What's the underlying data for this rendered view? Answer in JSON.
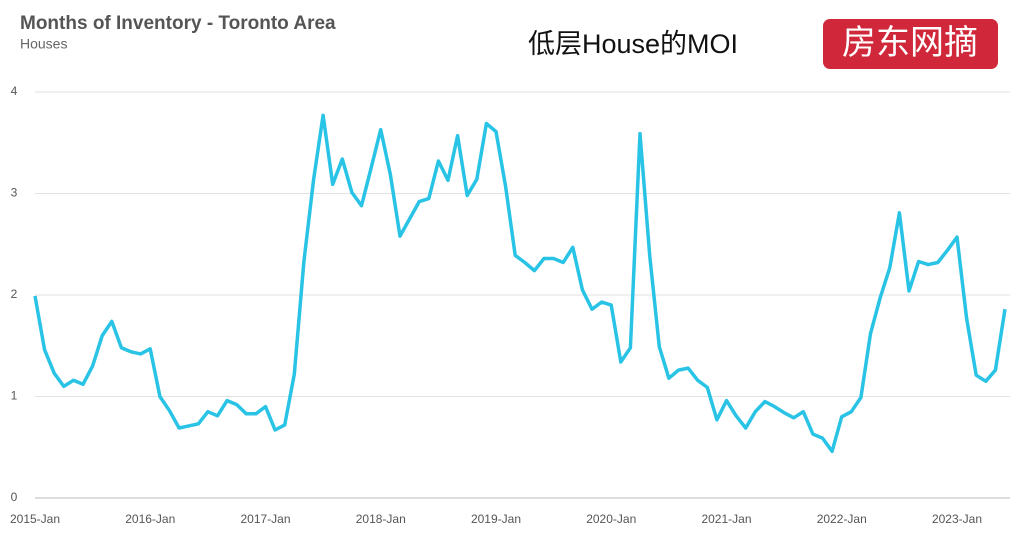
{
  "chart_data": {
    "type": "line",
    "title": "Months of Inventory - Toronto Area",
    "subtitle": "Houses",
    "annotation": "低层House的MOI",
    "badge": "房东网摘",
    "color": "#29c3e6",
    "grid": true,
    "ylim": [
      0,
      4
    ],
    "yticks": [
      0,
      1,
      2,
      3,
      4
    ],
    "categories": [
      "2015-Jan",
      null,
      null,
      null,
      null,
      null,
      null,
      null,
      null,
      null,
      null,
      null,
      "2016-Jan",
      null,
      null,
      null,
      null,
      null,
      null,
      null,
      null,
      null,
      null,
      null,
      "2017-Jan",
      null,
      null,
      null,
      null,
      null,
      null,
      null,
      null,
      null,
      null,
      null,
      "2018-Jan",
      null,
      null,
      null,
      null,
      null,
      null,
      null,
      null,
      null,
      null,
      null,
      "2019-Jan",
      null,
      null,
      null,
      null,
      null,
      null,
      null,
      null,
      null,
      null,
      null,
      "2020-Jan",
      null,
      null,
      null,
      null,
      null,
      null,
      null,
      null,
      null,
      null,
      null,
      "2021-Jan",
      null,
      null,
      null,
      null,
      null,
      null,
      null,
      null,
      null,
      null,
      null,
      "2022-Jan",
      null,
      null,
      null,
      null,
      null,
      null,
      null,
      null,
      null,
      null,
      null,
      "2023-Jan",
      null,
      null,
      null,
      null,
      null
    ],
    "values": [
      1.99,
      1.46,
      1.23,
      1.1,
      1.16,
      1.12,
      1.3,
      1.6,
      1.74,
      1.48,
      1.44,
      1.42,
      1.47,
      1.0,
      0.86,
      0.69,
      0.71,
      0.73,
      0.85,
      0.81,
      0.96,
      0.92,
      0.83,
      0.83,
      0.9,
      0.67,
      0.72,
      1.22,
      2.33,
      3.13,
      3.77,
      3.09,
      3.34,
      3.01,
      2.88,
      3.25,
      3.63,
      3.19,
      2.58,
      2.75,
      2.92,
      2.95,
      3.32,
      3.13,
      3.57,
      2.98,
      3.14,
      3.69,
      3.61,
      3.07,
      2.39,
      2.32,
      2.24,
      2.36,
      2.36,
      2.32,
      2.47,
      2.05,
      1.86,
      1.93,
      1.9,
      1.34,
      1.48,
      3.59,
      2.39,
      1.49,
      1.18,
      1.26,
      1.28,
      1.16,
      1.09,
      0.77,
      0.96,
      0.81,
      0.69,
      0.85,
      0.95,
      0.9,
      0.84,
      0.79,
      0.85,
      0.63,
      0.59,
      0.46,
      0.8,
      0.85,
      0.99,
      1.62,
      1.97,
      2.27,
      2.81,
      2.04,
      2.33,
      2.3,
      2.32,
      2.44,
      2.57,
      1.77,
      1.21,
      1.15,
      1.26,
      1.86
    ]
  }
}
